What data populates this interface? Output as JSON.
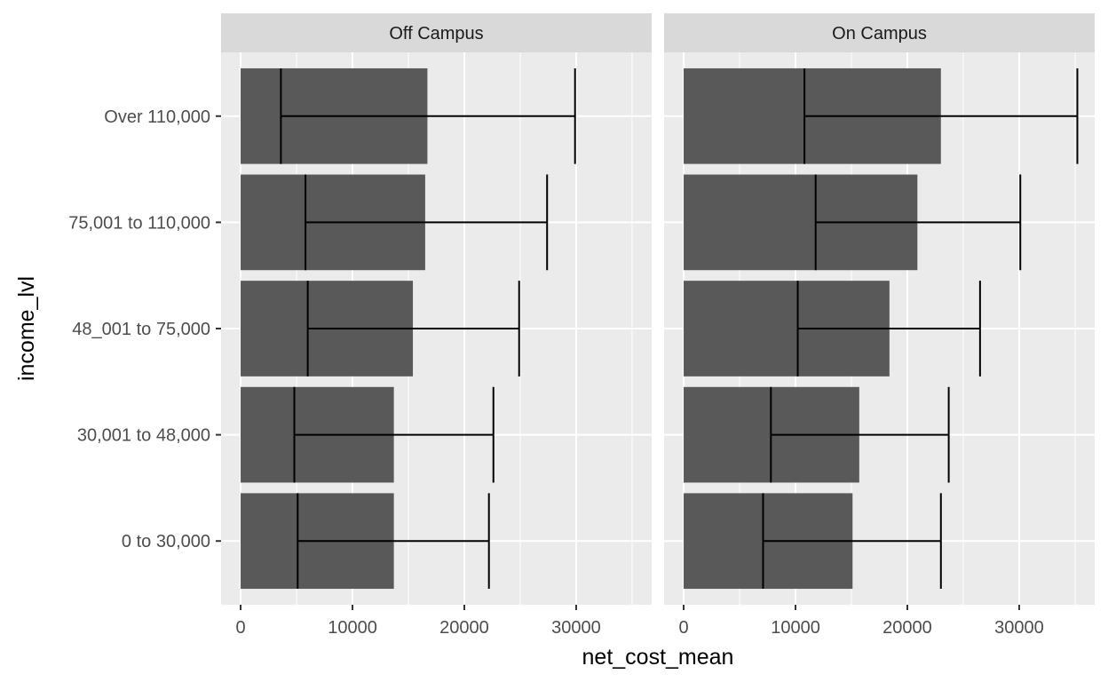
{
  "chart_data": {
    "type": "bar",
    "orientation": "horizontal",
    "xlabel": "net_cost_mean",
    "ylabel": "income_lvl",
    "xlim": [
      -1750,
      36750
    ],
    "xticks": [
      0,
      10000,
      20000,
      30000
    ],
    "xtick_labels": [
      "0",
      "10000",
      "20000",
      "30000"
    ],
    "categories": [
      "0 to 30,000",
      "30,001 to 48,000",
      "48_001 to 75,000",
      "75,001 to 110,000",
      "Over 110,000"
    ],
    "grid": true,
    "colors": {
      "bar": "#595959",
      "errorbar": "#000000",
      "panel_bg": "#ebebeb",
      "grid": "#ffffff",
      "strip_bg": "#d9d9d9"
    },
    "panels": [
      {
        "label": "Off Campus",
        "values": [
          13700,
          13700,
          15400,
          16500,
          16700
        ],
        "error_low": [
          5100,
          4800,
          6000,
          5800,
          3600
        ],
        "error_high": [
          22200,
          22600,
          24900,
          27400,
          29900
        ]
      },
      {
        "label": "On Campus",
        "values": [
          15100,
          15700,
          18400,
          20900,
          23000
        ],
        "error_low": [
          7100,
          7800,
          10200,
          11800,
          10800
        ],
        "error_high": [
          23000,
          23700,
          26500,
          30100,
          35200
        ]
      }
    ]
  }
}
